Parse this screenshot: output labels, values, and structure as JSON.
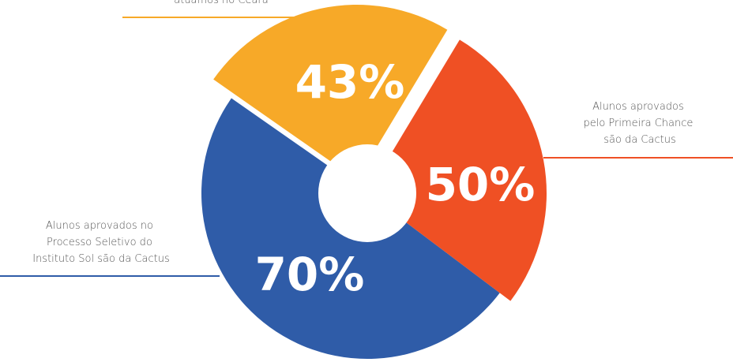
{
  "segments": [
    {
      "label": "atuamos no Ceará",
      "value": "43%"
    },
    {
      "label": [
        "Alunos aprovados",
        "pelo Primeira Chance",
        "são da Cactus"
      ],
      "value": "50%"
    },
    {
      "label": [
        "Alunos aprovados no",
        "Processo Seletivo do",
        "Instituto Sol são da Cactus"
      ],
      "value": "70%"
    }
  ]
}
